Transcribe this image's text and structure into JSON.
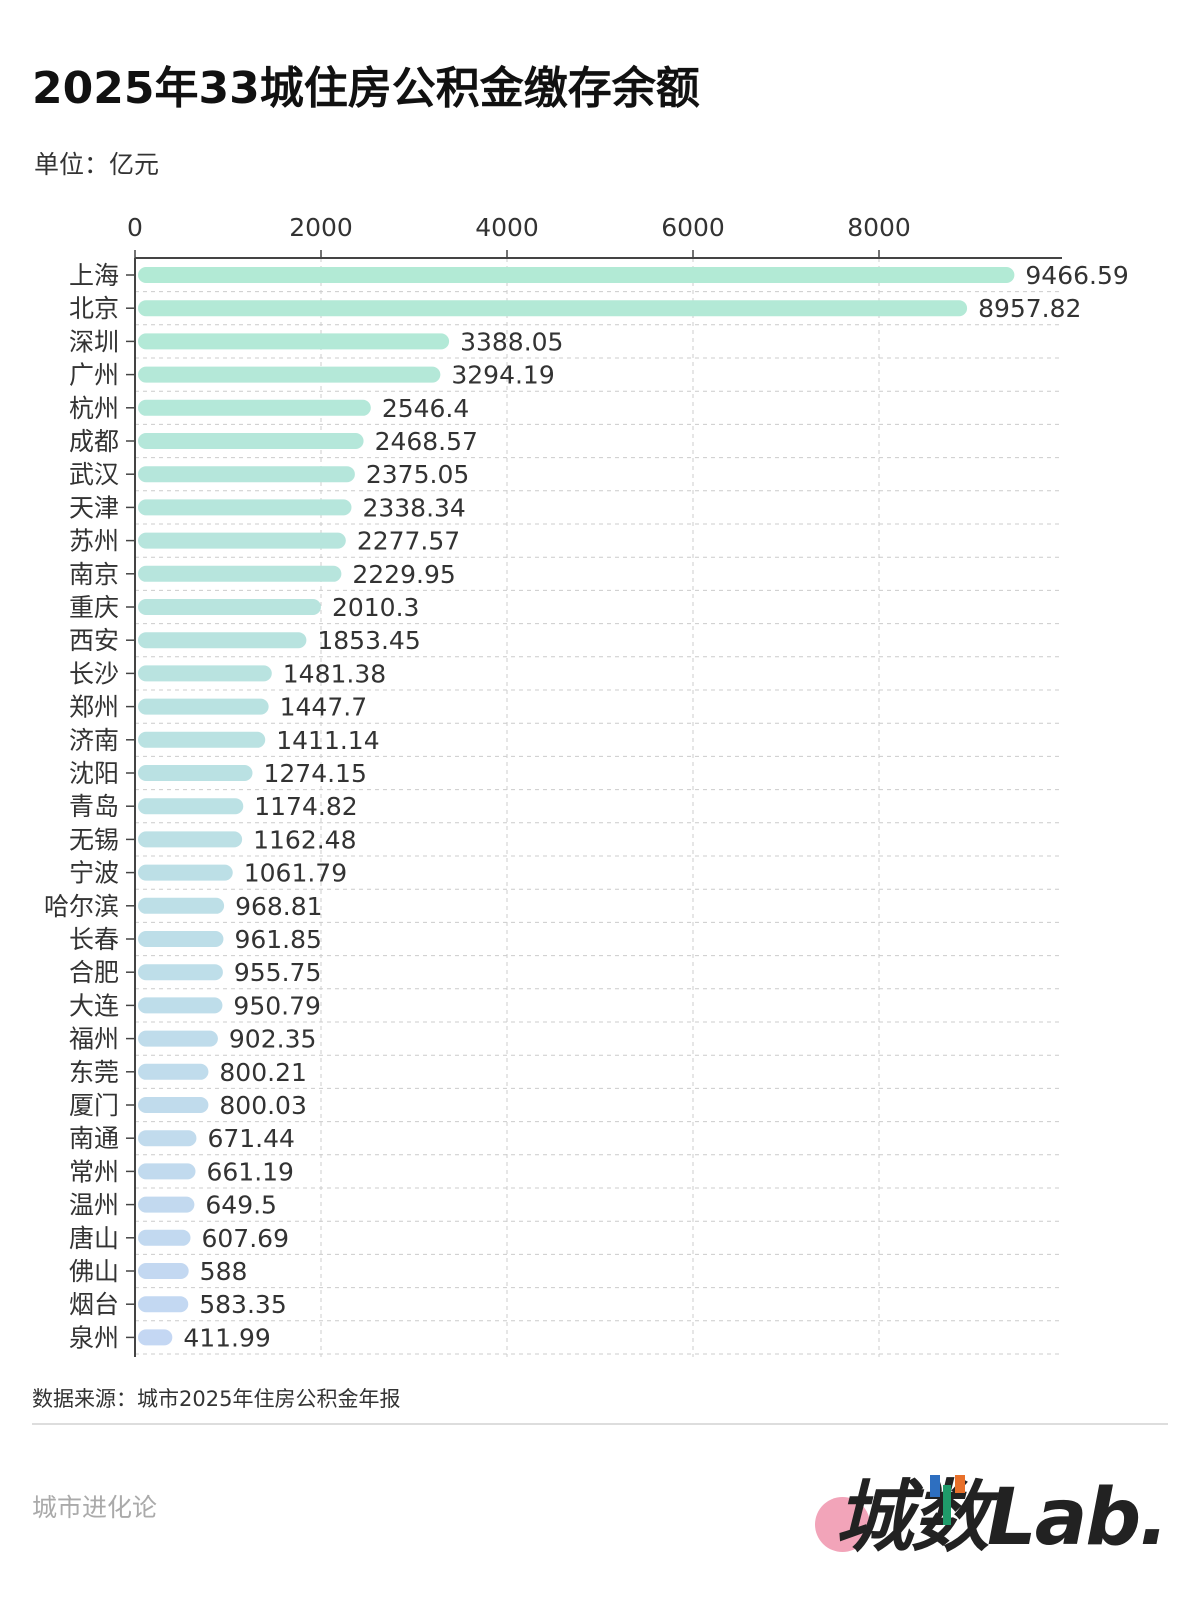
{
  "title": "2025年33城住房公积金缴存余额",
  "unit_label": "单位：亿元",
  "source": "数据来源：城市2025年住房公积金年报",
  "brand": "城市进化论",
  "logo_text": "城数Lab.",
  "colors": {
    "bar_top": "#b2ead5",
    "bar_bottom": "#c4d7f3",
    "axis": "#444444",
    "grid": "#cccccc"
  },
  "chart_data": {
    "type": "bar",
    "orientation": "horizontal",
    "title": "2025年33城住房公积金缴存余额",
    "unit": "单位：亿元",
    "xlim": [
      0,
      10000
    ],
    "x_ticks": [
      0,
      2000,
      4000,
      6000,
      8000
    ],
    "x_axis_position": "top",
    "grid": true,
    "categories": [
      "上海",
      "北京",
      "深圳",
      "广州",
      "杭州",
      "成都",
      "武汉",
      "天津",
      "苏州",
      "南京",
      "重庆",
      "西安",
      "长沙",
      "郑州",
      "济南",
      "沈阳",
      "青岛",
      "无锡",
      "宁波",
      "哈尔滨",
      "长春",
      "合肥",
      "大连",
      "福州",
      "东莞",
      "厦门",
      "南通",
      "常州",
      "温州",
      "唐山",
      "佛山",
      "烟台",
      "泉州"
    ],
    "values": [
      9466.59,
      8957.82,
      3388.05,
      3294.19,
      2546.4,
      2468.57,
      2375.05,
      2338.34,
      2277.57,
      2229.95,
      2010.3,
      1853.45,
      1481.38,
      1447.7,
      1411.14,
      1274.15,
      1174.82,
      1162.48,
      1061.79,
      968.81,
      961.85,
      955.75,
      950.79,
      902.35,
      800.21,
      800.03,
      671.44,
      661.19,
      649.5,
      607.69,
      588,
      583.35,
      411.99
    ],
    "labels": [
      "9466.59",
      "8957.82",
      "3388.05",
      "3294.19",
      "2546.4",
      "2468.57",
      "2375.05",
      "2338.34",
      "2277.57",
      "2229.95",
      "2010.3",
      "1853.45",
      "1481.38",
      "1447.7",
      "1411.14",
      "1274.15",
      "1174.82",
      "1162.48",
      "1061.79",
      "968.81",
      "961.85",
      "955.75",
      "950.79",
      "902.35",
      "800.21",
      "800.03",
      "671.44",
      "661.19",
      "649.5",
      "607.69",
      "588",
      "583.35",
      "411.99"
    ]
  }
}
